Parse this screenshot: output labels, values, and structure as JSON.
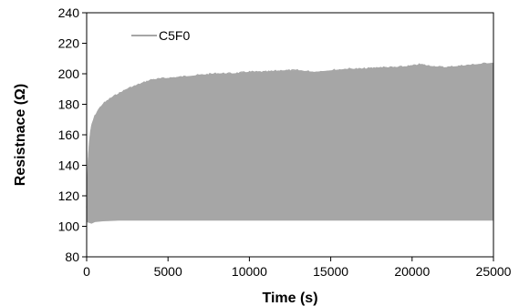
{
  "chart_data": {
    "type": "area",
    "title": "",
    "xlabel": "Time (s)",
    "ylabel": "Resistnace (Ω)",
    "xlim": [
      0,
      25000
    ],
    "ylim": [
      80,
      240
    ],
    "x_ticks": [
      0,
      5000,
      10000,
      15000,
      20000,
      25000
    ],
    "y_ticks": [
      80,
      100,
      120,
      140,
      160,
      180,
      200,
      220,
      240
    ],
    "grid": false,
    "legend_position": "top-left",
    "series": [
      {
        "name": "C5F0",
        "color": "#a6a6a6",
        "upper_envelope": {
          "x": [
            0,
            100,
            200,
            300,
            500,
            700,
            1000,
            1500,
            2000,
            2500,
            3000,
            3500,
            4000,
            5000,
            6000,
            7000,
            8000,
            9000,
            10000,
            11000,
            12000,
            13000,
            14000,
            15000,
            16000,
            17000,
            18000,
            19000,
            20000,
            20500,
            21000,
            22000,
            23000,
            24000,
            25000
          ],
          "y": [
            112,
            145,
            158,
            166,
            172,
            176,
            180,
            184,
            187,
            190,
            192,
            194,
            196,
            197,
            198,
            199,
            200,
            200,
            201,
            201,
            202,
            202,
            201,
            202,
            203,
            203,
            204,
            204,
            205,
            206,
            205,
            204,
            205,
            206,
            207
          ]
        },
        "lower_envelope": {
          "x": [
            0,
            300,
            500,
            1000,
            2000,
            3000,
            5000,
            10000,
            15000,
            20000,
            25000
          ],
          "y": [
            103,
            102,
            103,
            103.5,
            104,
            104,
            104,
            104,
            104,
            104,
            104
          ]
        }
      }
    ]
  }
}
